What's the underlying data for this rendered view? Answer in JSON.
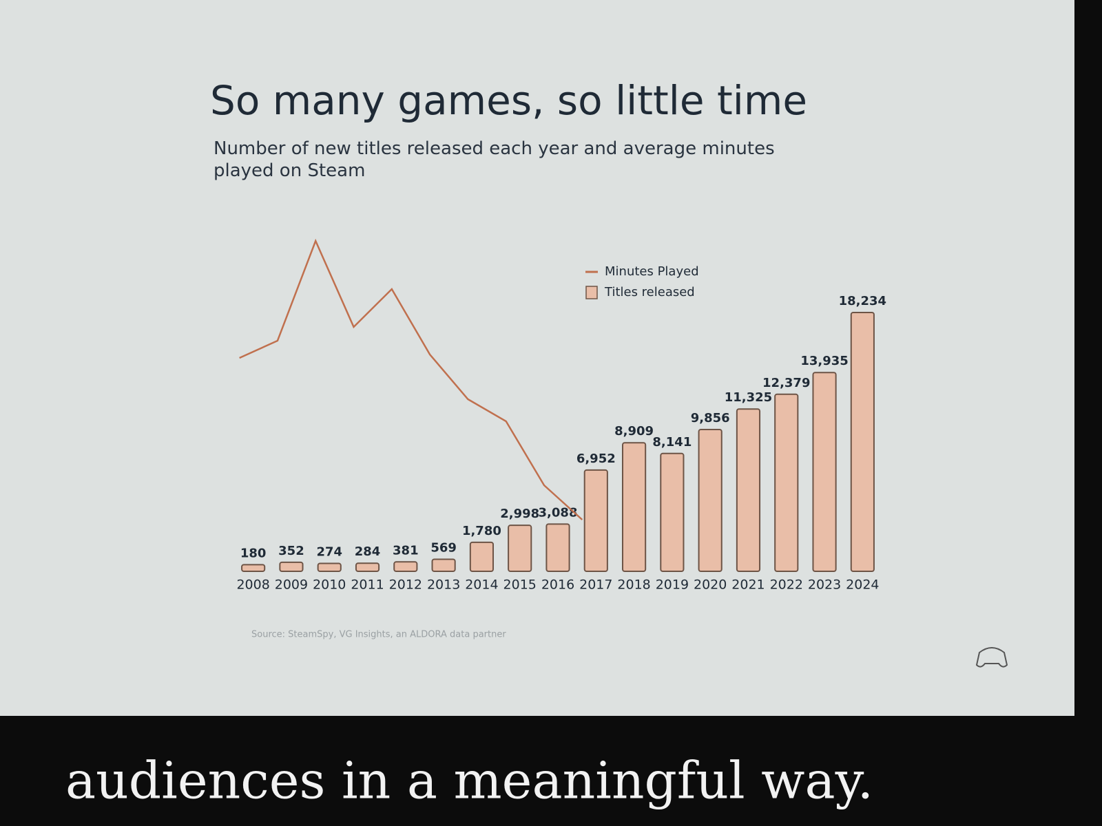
{
  "chart_data": {
    "type": "bar",
    "title": "So many games, so little time",
    "subtitle": "Number of new titles released each year and average minutes played on Steam",
    "source": "Source: SteamSpy, VG Insights, an ALDORA data partner",
    "caption": "audiences in a meaningful way.",
    "categories": [
      "2008",
      "2009",
      "2010",
      "2011",
      "2012",
      "2013",
      "2014",
      "2015",
      "2016",
      "2017",
      "2018",
      "2019",
      "2020",
      "2021",
      "2022",
      "2023",
      "2024"
    ],
    "legend": "top-center",
    "series": [
      {
        "name": "Minutes Played",
        "type": "line",
        "color": "#c0704e",
        "values": [
          310,
          335,
          480,
          355,
          410,
          315,
          250,
          218,
          125,
          75,
          null,
          null,
          null,
          null,
          null,
          null,
          null
        ]
      },
      {
        "name": "Titles released",
        "type": "bar",
        "color": "#e9bea8",
        "values": [
          180,
          352,
          274,
          284,
          381,
          569,
          1780,
          2998,
          3088,
          6952,
          8909,
          8141,
          9856,
          11325,
          12379,
          13935,
          18234
        ],
        "value_labels": [
          "180",
          "352",
          "274",
          "284",
          "381",
          "569",
          "1,780",
          "2,998",
          "3,088",
          "6,952",
          "8,909",
          "8,141",
          "9,856",
          "11,325",
          "12,379",
          "13,935",
          "18,234"
        ]
      }
    ]
  }
}
